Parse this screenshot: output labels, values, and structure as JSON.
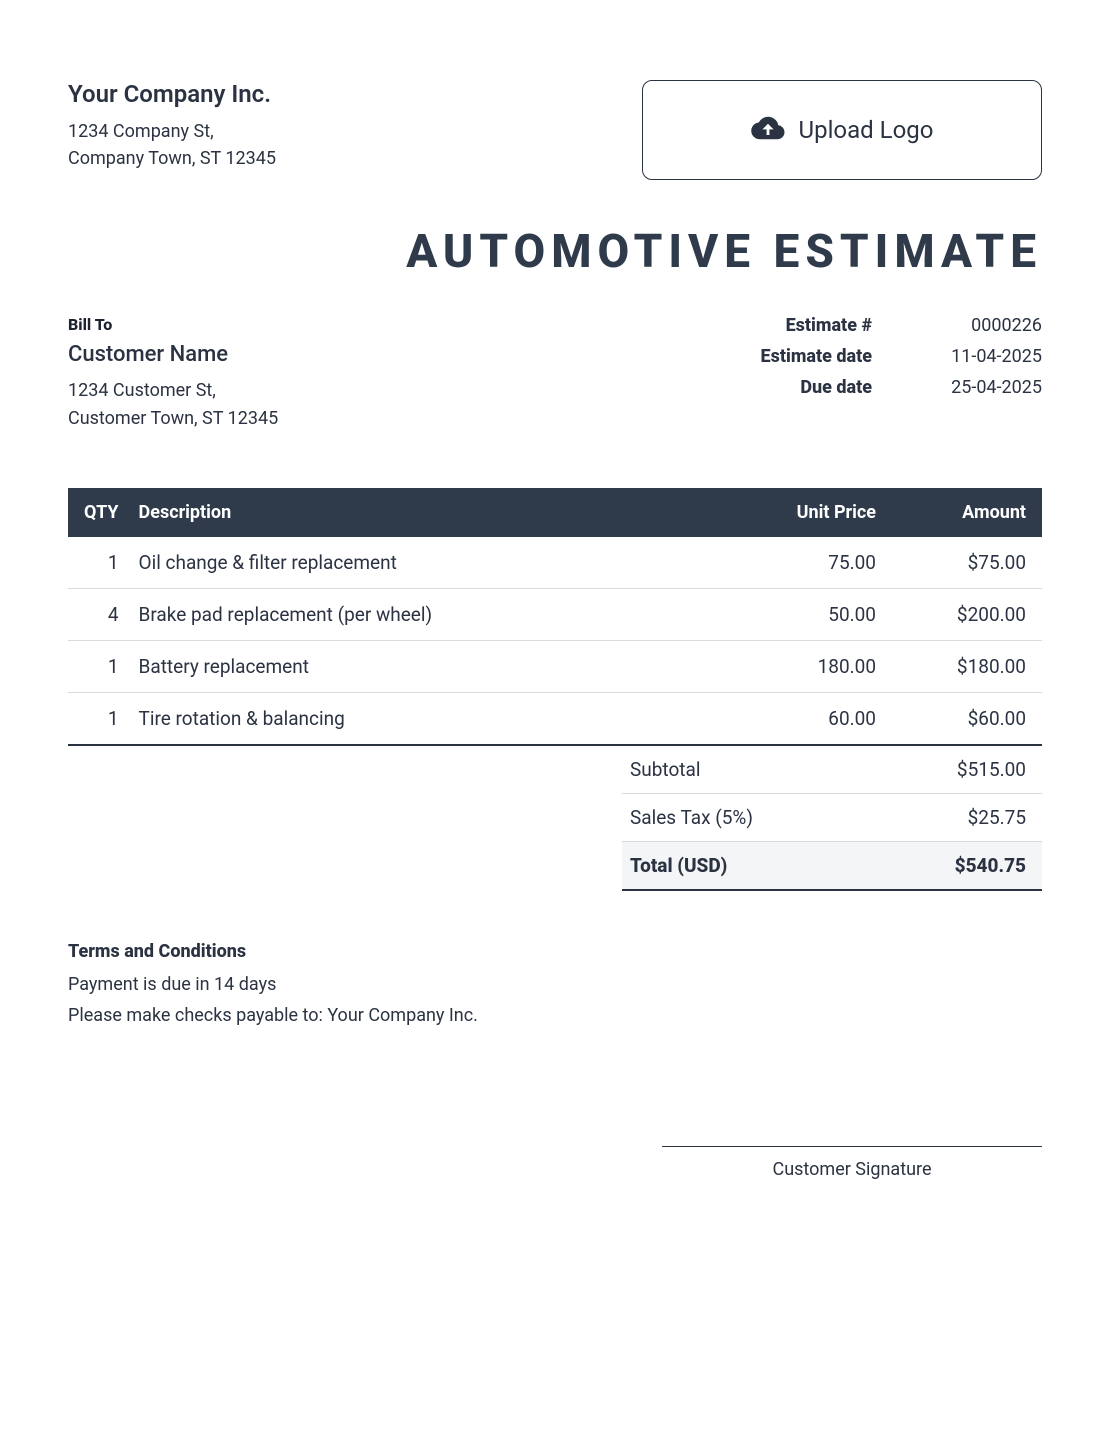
{
  "colors": {
    "text": "#2b3342",
    "header_bg": "#2f3a4a",
    "header_fg": "#ffffff",
    "row_border": "#d7dbe0",
    "total_bg": "#f4f5f6",
    "page_bg": "#ffffff"
  },
  "typography": {
    "base_font": "sans-serif",
    "company_name_size": 24,
    "title_size": 46,
    "title_letter_spacing": 6,
    "body_size": 18
  },
  "company": {
    "name": "Your Company Inc.",
    "address_line1": "1234 Company St,",
    "address_line2": "Company Town, ST 12345"
  },
  "upload": {
    "label": "Upload Logo",
    "icon": "cloud-upload-icon"
  },
  "title": "AUTOMOTIVE ESTIMATE",
  "bill_to": {
    "heading": "Bill To",
    "name": "Customer Name",
    "address_line1": "1234 Customer St,",
    "address_line2": "Customer Town, ST 12345"
  },
  "meta": {
    "estimate_no_label": "Estimate #",
    "estimate_no": "0000226",
    "estimate_date_label": "Estimate date",
    "estimate_date": "11-04-2025",
    "due_date_label": "Due date",
    "due_date": "25-04-2025"
  },
  "table": {
    "type": "table",
    "columns": [
      "QTY",
      "Description",
      "Unit Price",
      "Amount"
    ],
    "column_align": [
      "right",
      "left",
      "right",
      "right"
    ],
    "rows": [
      {
        "qty": "1",
        "desc": "Oil change & filter replacement",
        "unit": "75.00",
        "amount": "$75.00"
      },
      {
        "qty": "4",
        "desc": "Brake pad replacement (per wheel)",
        "unit": "50.00",
        "amount": "$200.00"
      },
      {
        "qty": "1",
        "desc": "Battery replacement",
        "unit": "180.00",
        "amount": "$180.00"
      },
      {
        "qty": "1",
        "desc": "Tire rotation & balancing",
        "unit": "60.00",
        "amount": "$60.00"
      }
    ]
  },
  "totals": {
    "subtotal_label": "Subtotal",
    "subtotal": "$515.00",
    "tax_label": "Sales Tax (5%)",
    "tax": "$25.75",
    "total_label": "Total (USD)",
    "total": "$540.75"
  },
  "terms": {
    "heading": "Terms and Conditions",
    "line1": "Payment is due in 14 days",
    "line2": "Please make checks payable to: Your Company Inc."
  },
  "signature": {
    "label": "Customer Signature"
  }
}
